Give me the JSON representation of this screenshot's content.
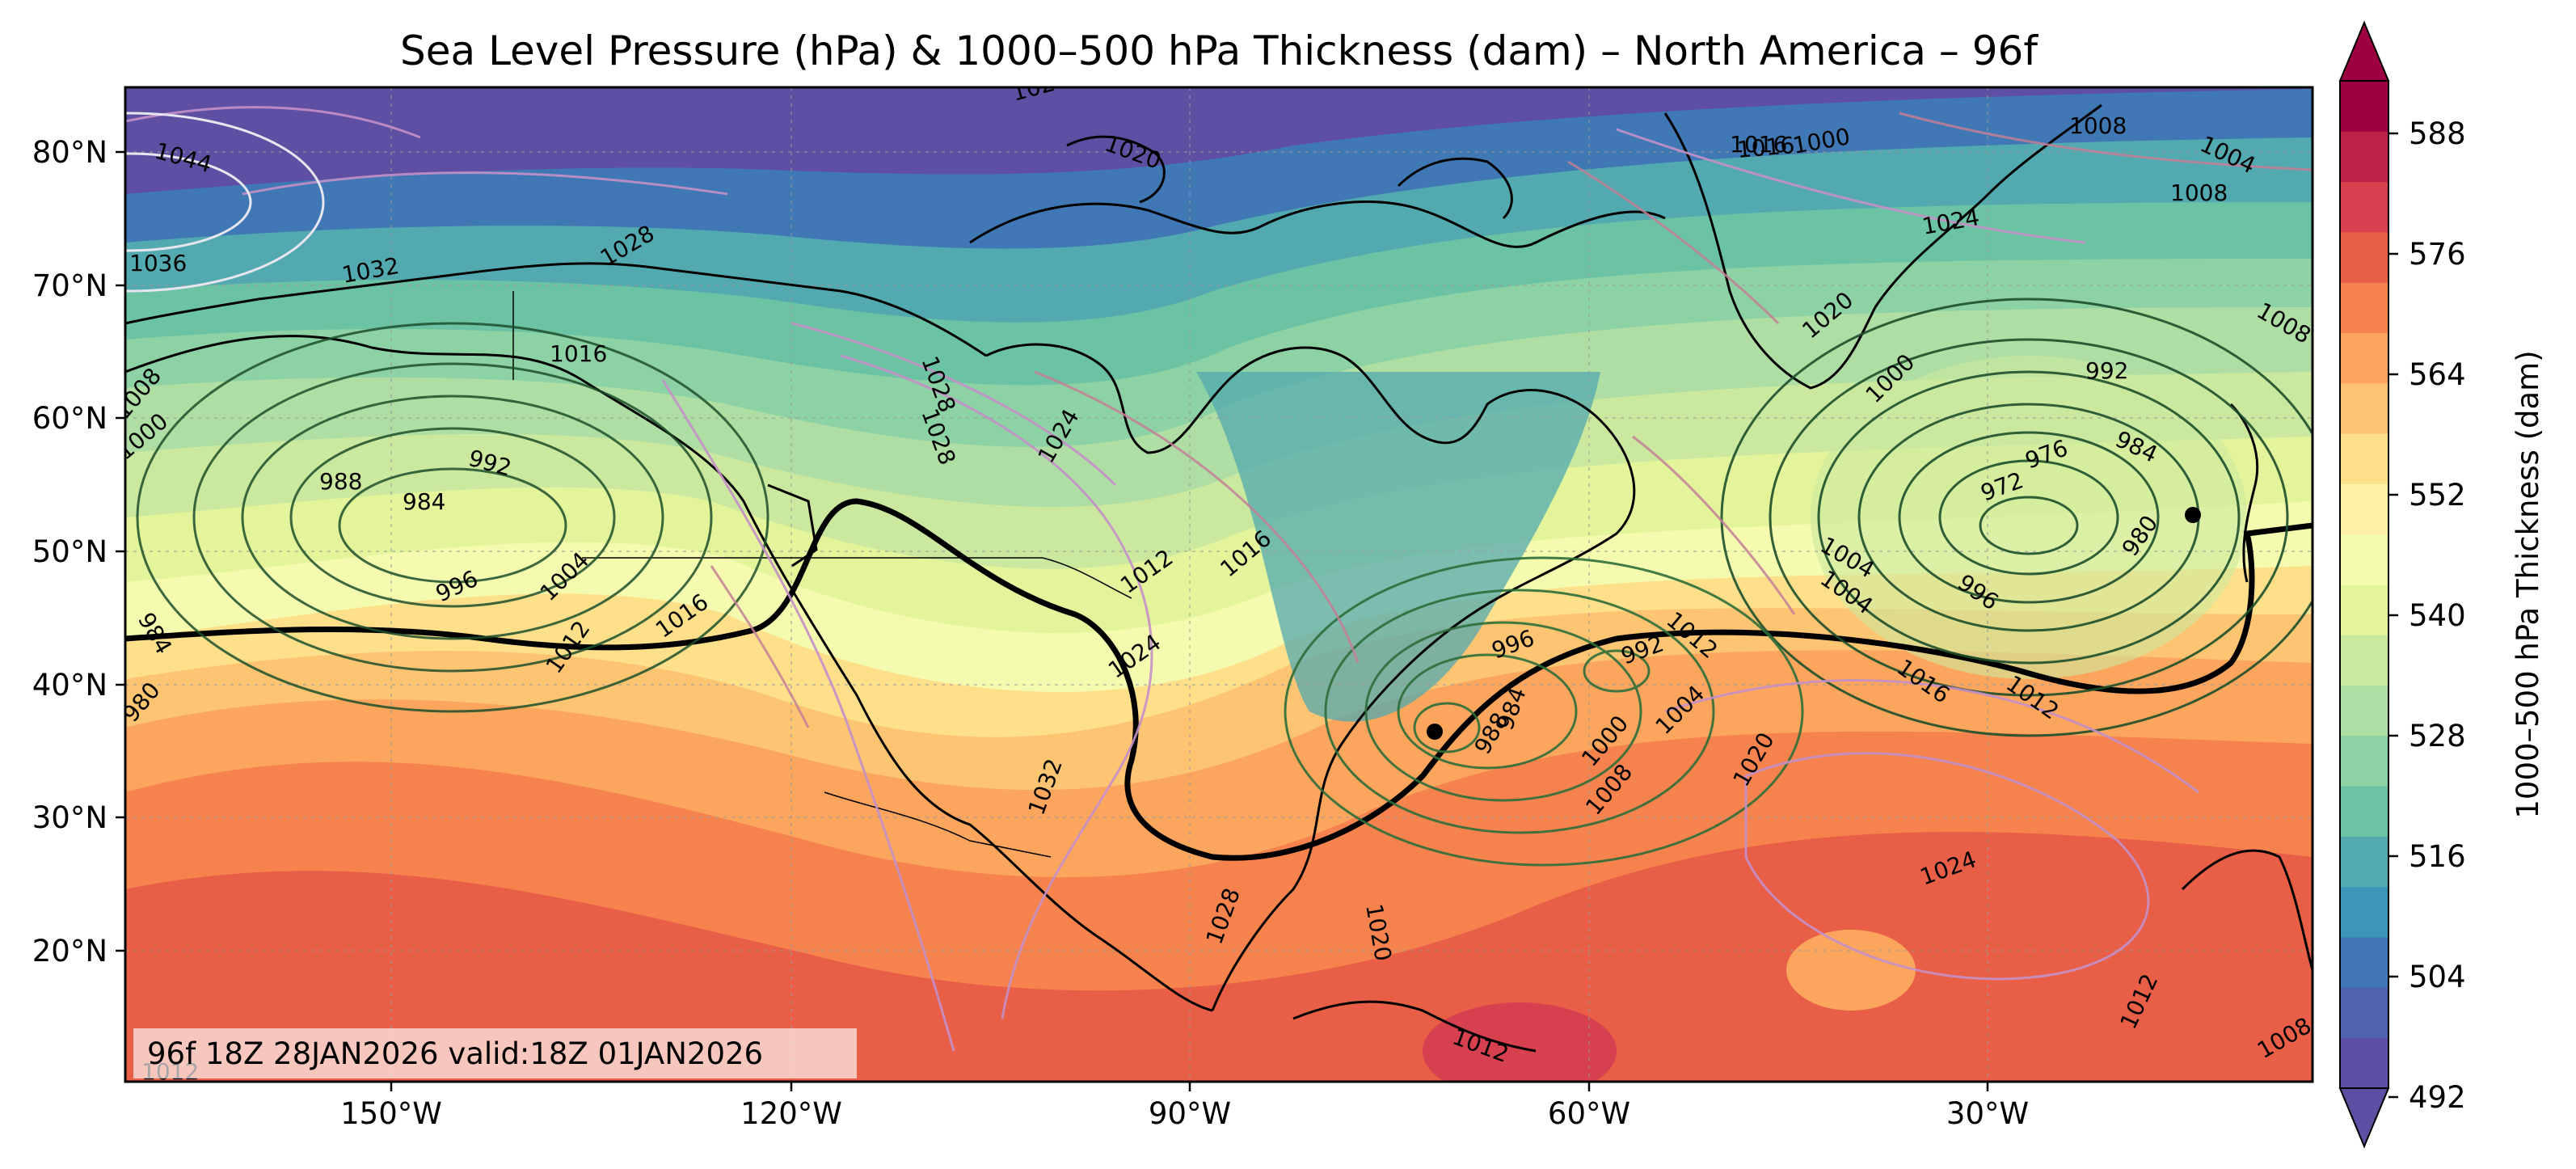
{
  "title": "Sea Level Pressure (hPa) & 1000–500 hPa Thickness (dam) – North America – 96f",
  "stamp": "96f 18Z 28JAN2026 valid:18Z 01JAN2026",
  "axes": {
    "lat_ticks": [
      "80°N",
      "70°N",
      "60°N",
      "50°N",
      "40°N",
      "30°N",
      "20°N"
    ],
    "lon_ticks": [
      "150°W",
      "120°W",
      "90°W",
      "60°W",
      "30°W"
    ]
  },
  "colorbar": {
    "label": "1000–500 hPa Thickness (dam)",
    "ticks": [
      "588",
      "576",
      "564",
      "552",
      "540",
      "528",
      "516",
      "504",
      "492"
    ],
    "colors": [
      "#5e4fa2",
      "#4f62ab",
      "#3f78b5",
      "#3d95b8",
      "#52a9af",
      "#6cc3a4",
      "#8dd2a4",
      "#aedea3",
      "#cbe99e",
      "#e4f49b",
      "#f5fbae",
      "#fff2a8",
      "#fee08b",
      "#fdc472",
      "#fca55d",
      "#f6834e",
      "#e85e46",
      "#d7404e",
      "#be2248",
      "#9e0142"
    ],
    "under_color": "#5e4fa2",
    "over_color": "#9e0142"
  },
  "pressure_labels": [
    "1044",
    "1036",
    "1032",
    "1028",
    "1024",
    "1028",
    "1016",
    "1020",
    "1016",
    "1008",
    "1004",
    "1008",
    "1024",
    "1020",
    "1008",
    "1000",
    "992",
    "984",
    "976",
    "972",
    "980",
    "1000",
    "1016",
    "988",
    "992",
    "984",
    "1004",
    "996",
    "1016",
    "1012",
    "1008",
    "1004",
    "1000",
    "984",
    "980",
    "1028",
    "1024",
    "1012",
    "1016",
    "1024",
    "1032",
    "996",
    "992",
    "988",
    "984",
    "1000",
    "1004",
    "1008",
    "1012",
    "1016",
    "1012",
    "1004",
    "996",
    "1020",
    "1024",
    "1028",
    "1020",
    "1012",
    "1012",
    "1012",
    "1008"
  ],
  "highlight_contour": "540",
  "features": {
    "lows": [
      "984",
      "972",
      "988"
    ]
  }
}
